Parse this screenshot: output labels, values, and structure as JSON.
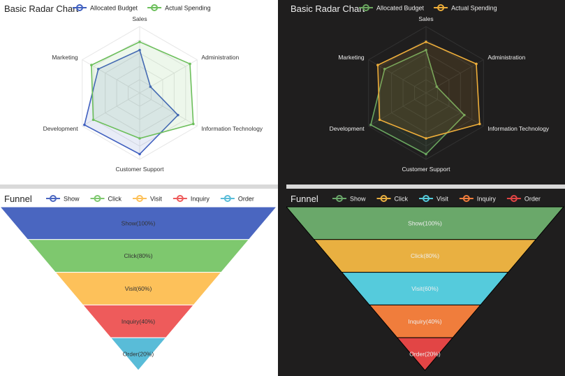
{
  "themes": {
    "light": {
      "text": "#222222",
      "label": "#333333",
      "split": "#e6e6e6",
      "radar_colors": [
        "#3f5fbf",
        "#6cbf5b"
      ],
      "funnel_colors": [
        "#4a66c0",
        "#7ec86e",
        "#fdc15a",
        "#ee5b5b",
        "#59bcd8"
      ],
      "funnel_label": "#333333",
      "seg_stroke": "#ffffff"
    },
    "dark": {
      "text": "#eeeeee",
      "label": "#eeeeee",
      "split": "#333333",
      "radar_colors": [
        "#6aa65f",
        "#eeae3a"
      ],
      "funnel_colors": [
        "#6aa86a",
        "#e9b041",
        "#55cbdc",
        "#f07d3c",
        "#e24545"
      ],
      "funnel_label": "#eeeeee",
      "seg_stroke": "#000000"
    }
  },
  "chart_data": [
    {
      "type": "radar",
      "title": "Basic Radar Chart",
      "indicators": [
        {
          "name": "Sales",
          "max": 6500
        },
        {
          "name": "Administration",
          "max": 16000
        },
        {
          "name": "Information Technology",
          "max": 30000
        },
        {
          "name": "Customer Support",
          "max": 38000
        },
        {
          "name": "Development",
          "max": 52000
        },
        {
          "name": "Marketing",
          "max": 25000
        }
      ],
      "series": [
        {
          "name": "Allocated Budget",
          "values": [
            4200,
            3000,
            20000,
            35000,
            50000,
            18000
          ]
        },
        {
          "name": "Actual Spending",
          "values": [
            5000,
            14000,
            28000,
            26000,
            42000,
            21000
          ]
        }
      ]
    },
    {
      "type": "funnel",
      "title": "Funnel",
      "categories": [
        "Show",
        "Click",
        "Visit",
        "Inquiry",
        "Order"
      ],
      "values": [
        100,
        80,
        60,
        40,
        20
      ],
      "labels": [
        "Show(100%)",
        "Click(80%)",
        "Visit(60%)",
        "Inquiry(40%)",
        "Order(20%)"
      ]
    }
  ]
}
